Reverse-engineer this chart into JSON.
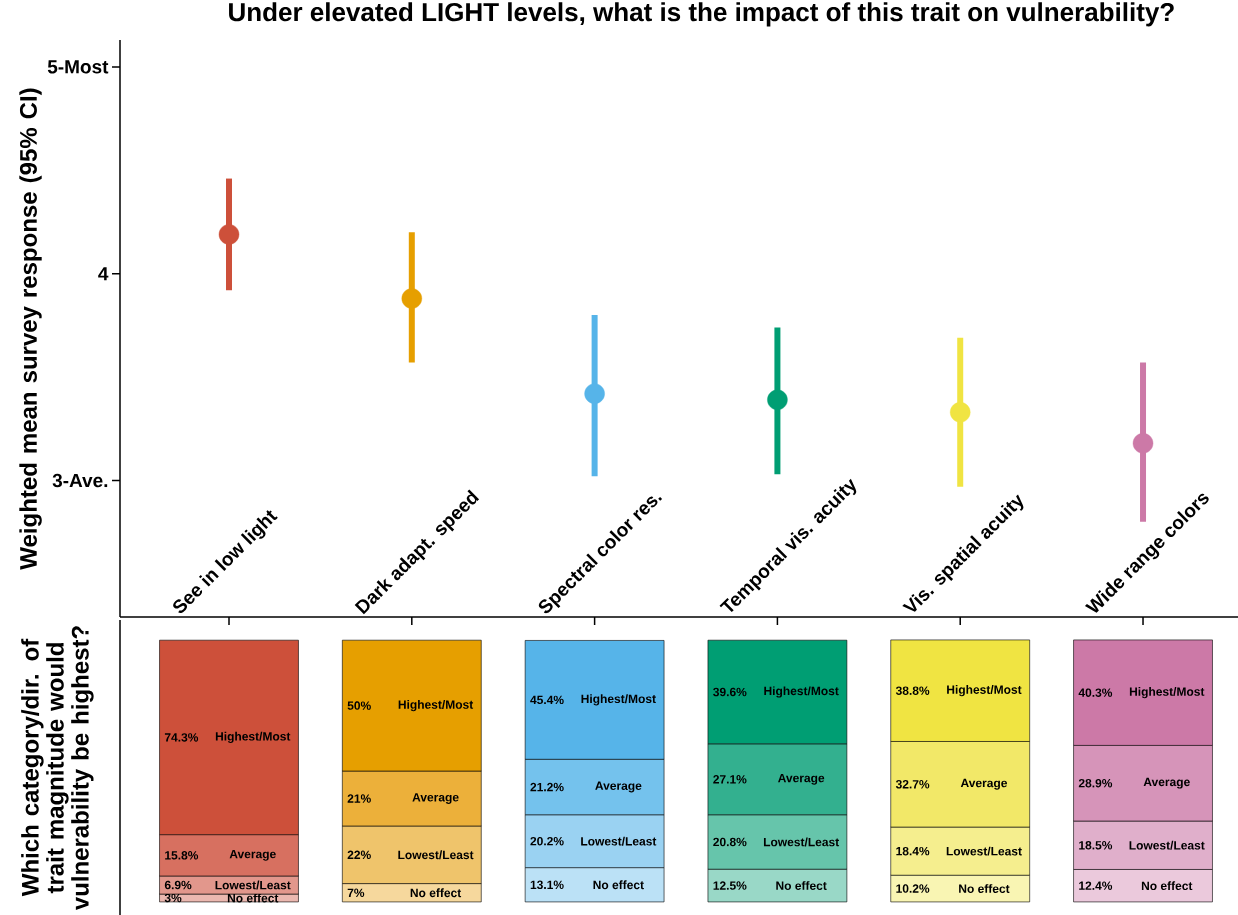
{
  "chart_data": [
    {
      "type": "scatter",
      "title": "Under elevated LIGHT levels, what is the impact of this trait on vulnerability?",
      "ylabel": "Weighted mean survey response (95% CI)",
      "categories": [
        "See in low light",
        "Dark adapt. speed",
        "Spectral color res.",
        "Temporal vis. acuity",
        "Vis. spatial acuity",
        "Wide range colors"
      ],
      "values": [
        4.19,
        3.88,
        3.42,
        3.39,
        3.33,
        3.18
      ],
      "errors": [
        [
          3.92,
          4.46
        ],
        [
          3.57,
          4.2
        ],
        [
          3.02,
          3.8
        ],
        [
          3.03,
          3.74
        ],
        [
          2.97,
          3.69
        ],
        [
          2.8,
          3.57
        ]
      ],
      "colors": [
        "#cd503a",
        "#e69f00",
        "#56b4e9",
        "#009e73",
        "#f0e442",
        "#cc79a7"
      ],
      "marker": "circle",
      "ylim": [
        2.34,
        5.13
      ],
      "yticks": [
        {
          "value": 3,
          "label": "3-Ave."
        },
        {
          "value": 4,
          "label": "4"
        },
        {
          "value": 5,
          "label": "5-Most"
        }
      ]
    },
    {
      "type": "bar",
      "stacked": true,
      "ylabel": "Which category/dir. of trait magnitude would vulnerability be highest?",
      "categories": [
        null,
        null,
        null,
        null,
        null,
        null
      ],
      "tick_labels": false,
      "series": [
        {
          "name": "No effect",
          "values": [
            3,
            7,
            13.1,
            12.5,
            10.2,
            12.4
          ],
          "value_labels": [
            "3%",
            "7%",
            "13.1%",
            "12.5%",
            "10.2%",
            "12.4%"
          ],
          "colors": [
            "#ebb8b0",
            "#f6d89d",
            "#bbe1f6",
            "#99d8c7",
            "#f9f5b3",
            "#ebc9dc"
          ]
        },
        {
          "name": "Lowest/Least",
          "values": [
            6.9,
            22,
            20.2,
            20.8,
            18.4,
            18.5
          ],
          "value_labels": [
            "6.9%",
            "22%",
            "20.2%",
            "20.8%",
            "18.4%",
            "18.5%"
          ],
          "colors": [
            "#e2978c",
            "#efc46b",
            "#9ad2f2",
            "#66c5ab",
            "#f5ee8e",
            "#e0afcb"
          ]
        },
        {
          "name": "Average",
          "values": [
            15.8,
            21,
            21.2,
            27.1,
            32.7,
            28.9
          ],
          "value_labels": [
            "15.8%",
            "21%",
            "21.2%",
            "27.1%",
            "32.7%",
            "28.9%"
          ],
          "colors": [
            "#d77060",
            "#ecb03a",
            "#74c2ed",
            "#33b08f",
            "#f2e868",
            "#d694b9"
          ]
        },
        {
          "name": "Highest/Most",
          "values": [
            74.3,
            50,
            45.4,
            39.6,
            38.8,
            40.3
          ],
          "value_labels": [
            "74.3%",
            "50%",
            "45.4%",
            "39.6%",
            "38.8%",
            "40.3%"
          ],
          "colors": [
            "#cd503a",
            "#e69f00",
            "#56b4e9",
            "#009e73",
            "#f0e442",
            "#cc79a7"
          ]
        }
      ]
    }
  ]
}
